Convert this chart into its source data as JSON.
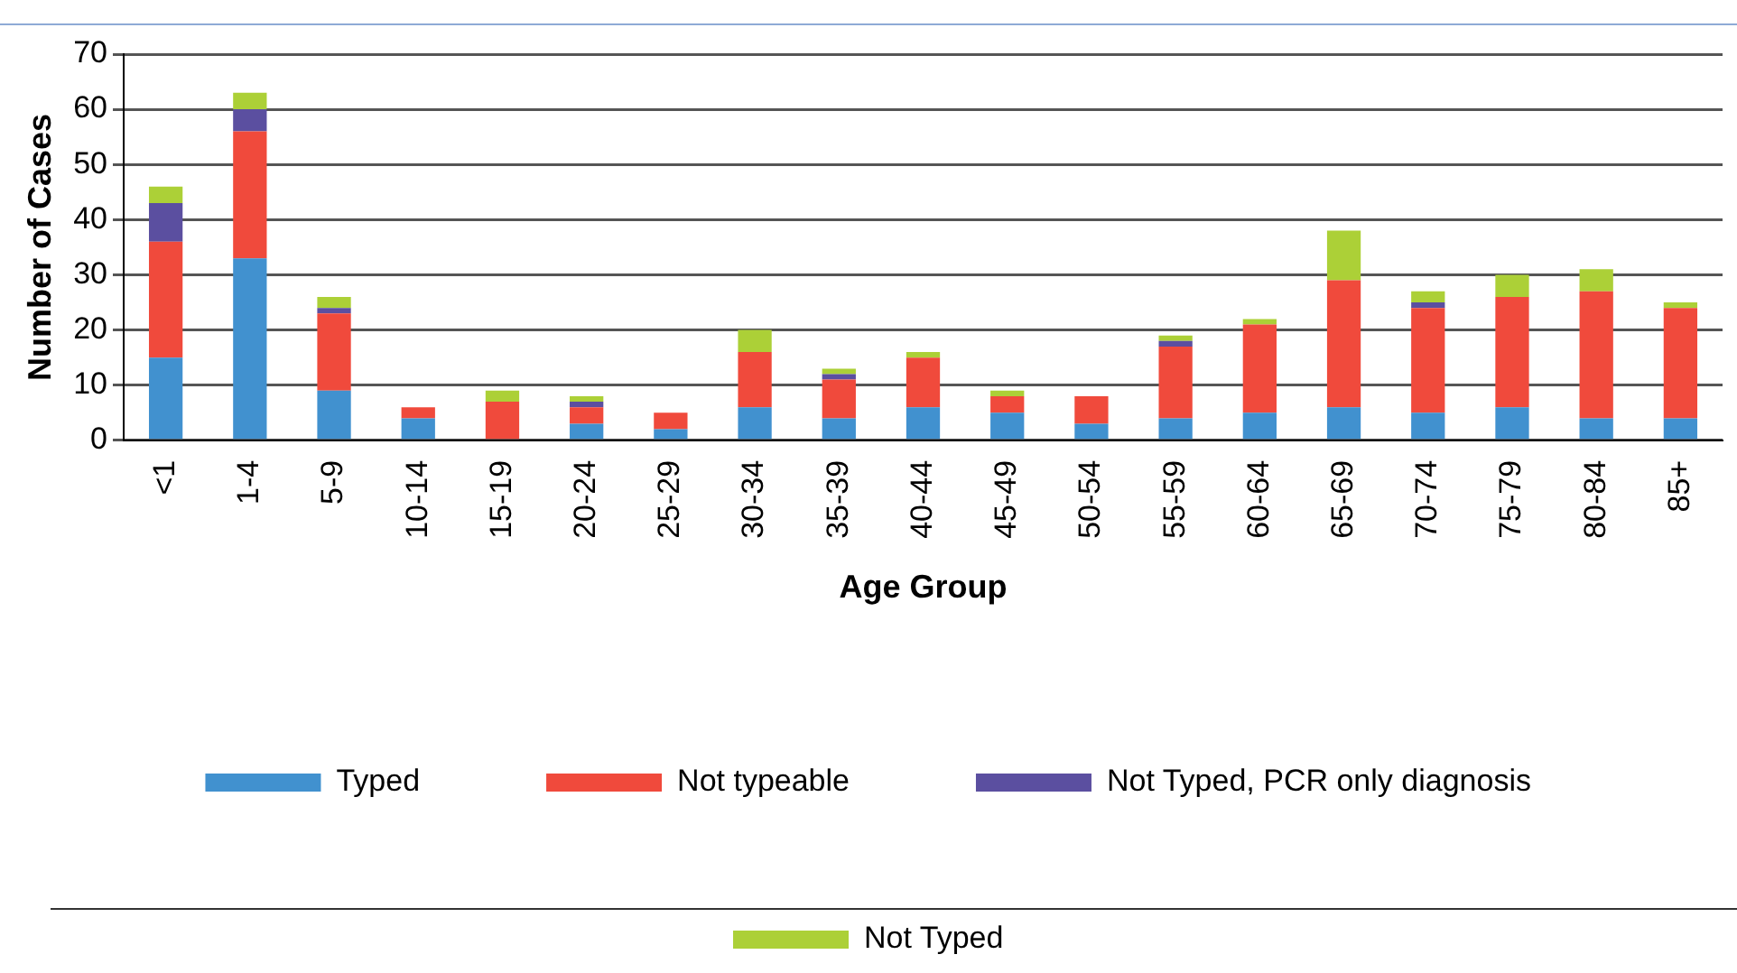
{
  "chart_data": {
    "type": "bar",
    "stacked": true,
    "xlabel": "Age Group",
    "ylabel": "Number of Cases",
    "categories": [
      "<1",
      "1-4",
      "5-9",
      "10-14",
      "15-19",
      "20-24",
      "25-29",
      "30-34",
      "35-39",
      "40-44",
      "45-49",
      "50-54",
      "55-59",
      "60-64",
      "65-69",
      "70-74",
      "75-79",
      "80-84",
      "85+"
    ],
    "series": [
      {
        "name": "Typed",
        "color": "#4191cf",
        "values": [
          15,
          33,
          9,
          4,
          0,
          3,
          2,
          6,
          4,
          6,
          5,
          3,
          4,
          5,
          6,
          5,
          6,
          4,
          4
        ]
      },
      {
        "name": "Not typeable",
        "color": "#f04a3c",
        "values": [
          21,
          23,
          14,
          2,
          7,
          3,
          3,
          10,
          7,
          9,
          3,
          5,
          13,
          16,
          23,
          19,
          20,
          23,
          20
        ]
      },
      {
        "name": "Not Typed, PCR only diagnosis",
        "color": "#5b4fa0",
        "values": [
          7,
          4,
          1,
          0,
          0,
          1,
          0,
          0,
          1,
          0,
          0,
          0,
          1,
          0,
          0,
          1,
          0,
          0,
          0
        ]
      },
      {
        "name": "Not Typed",
        "color": "#acd037",
        "values": [
          3,
          3,
          2,
          0,
          2,
          1,
          0,
          4,
          1,
          1,
          1,
          0,
          1,
          1,
          9,
          2,
          4,
          4,
          1
        ]
      }
    ],
    "ylim": [
      0,
      70
    ],
    "yticks": [
      0,
      10,
      20,
      30,
      40,
      50,
      60,
      70
    ],
    "grid": "y",
    "legend": "bottom"
  }
}
